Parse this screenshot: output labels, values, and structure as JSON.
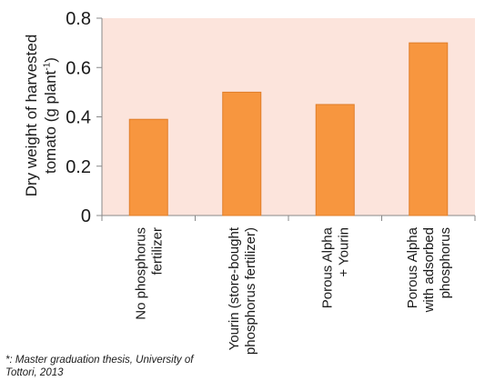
{
  "chart_data": {
    "type": "bar",
    "categories": [
      [
        "No phosphorus",
        "fertilizer"
      ],
      [
        "Yourin (store-bought",
        "phosphorus fertilizer)"
      ],
      [
        "Porous Alpha",
        "+ Yourin"
      ],
      [
        "Porous Alpha",
        "with adsorbed",
        "phosphorus"
      ]
    ],
    "values": [
      0.39,
      0.5,
      0.45,
      0.7
    ],
    "ylabel_line1": "Dry weight of harvested",
    "ylabel_line2": "tomato (g plant",
    "ylabel_sup": "-1",
    "ylabel_close": ")",
    "ylim": [
      0,
      0.8
    ],
    "yticks": [
      "0",
      "0.2",
      "0.4",
      "0.6",
      "0.8"
    ],
    "grid": false,
    "colors": {
      "bar": "#F7963F",
      "bar_edge": "#E07E2A",
      "plot_bg": "#FCE4DC",
      "axis": "#888888"
    }
  },
  "footnote": "*: Master graduation thesis, University of Tottori, 2013"
}
